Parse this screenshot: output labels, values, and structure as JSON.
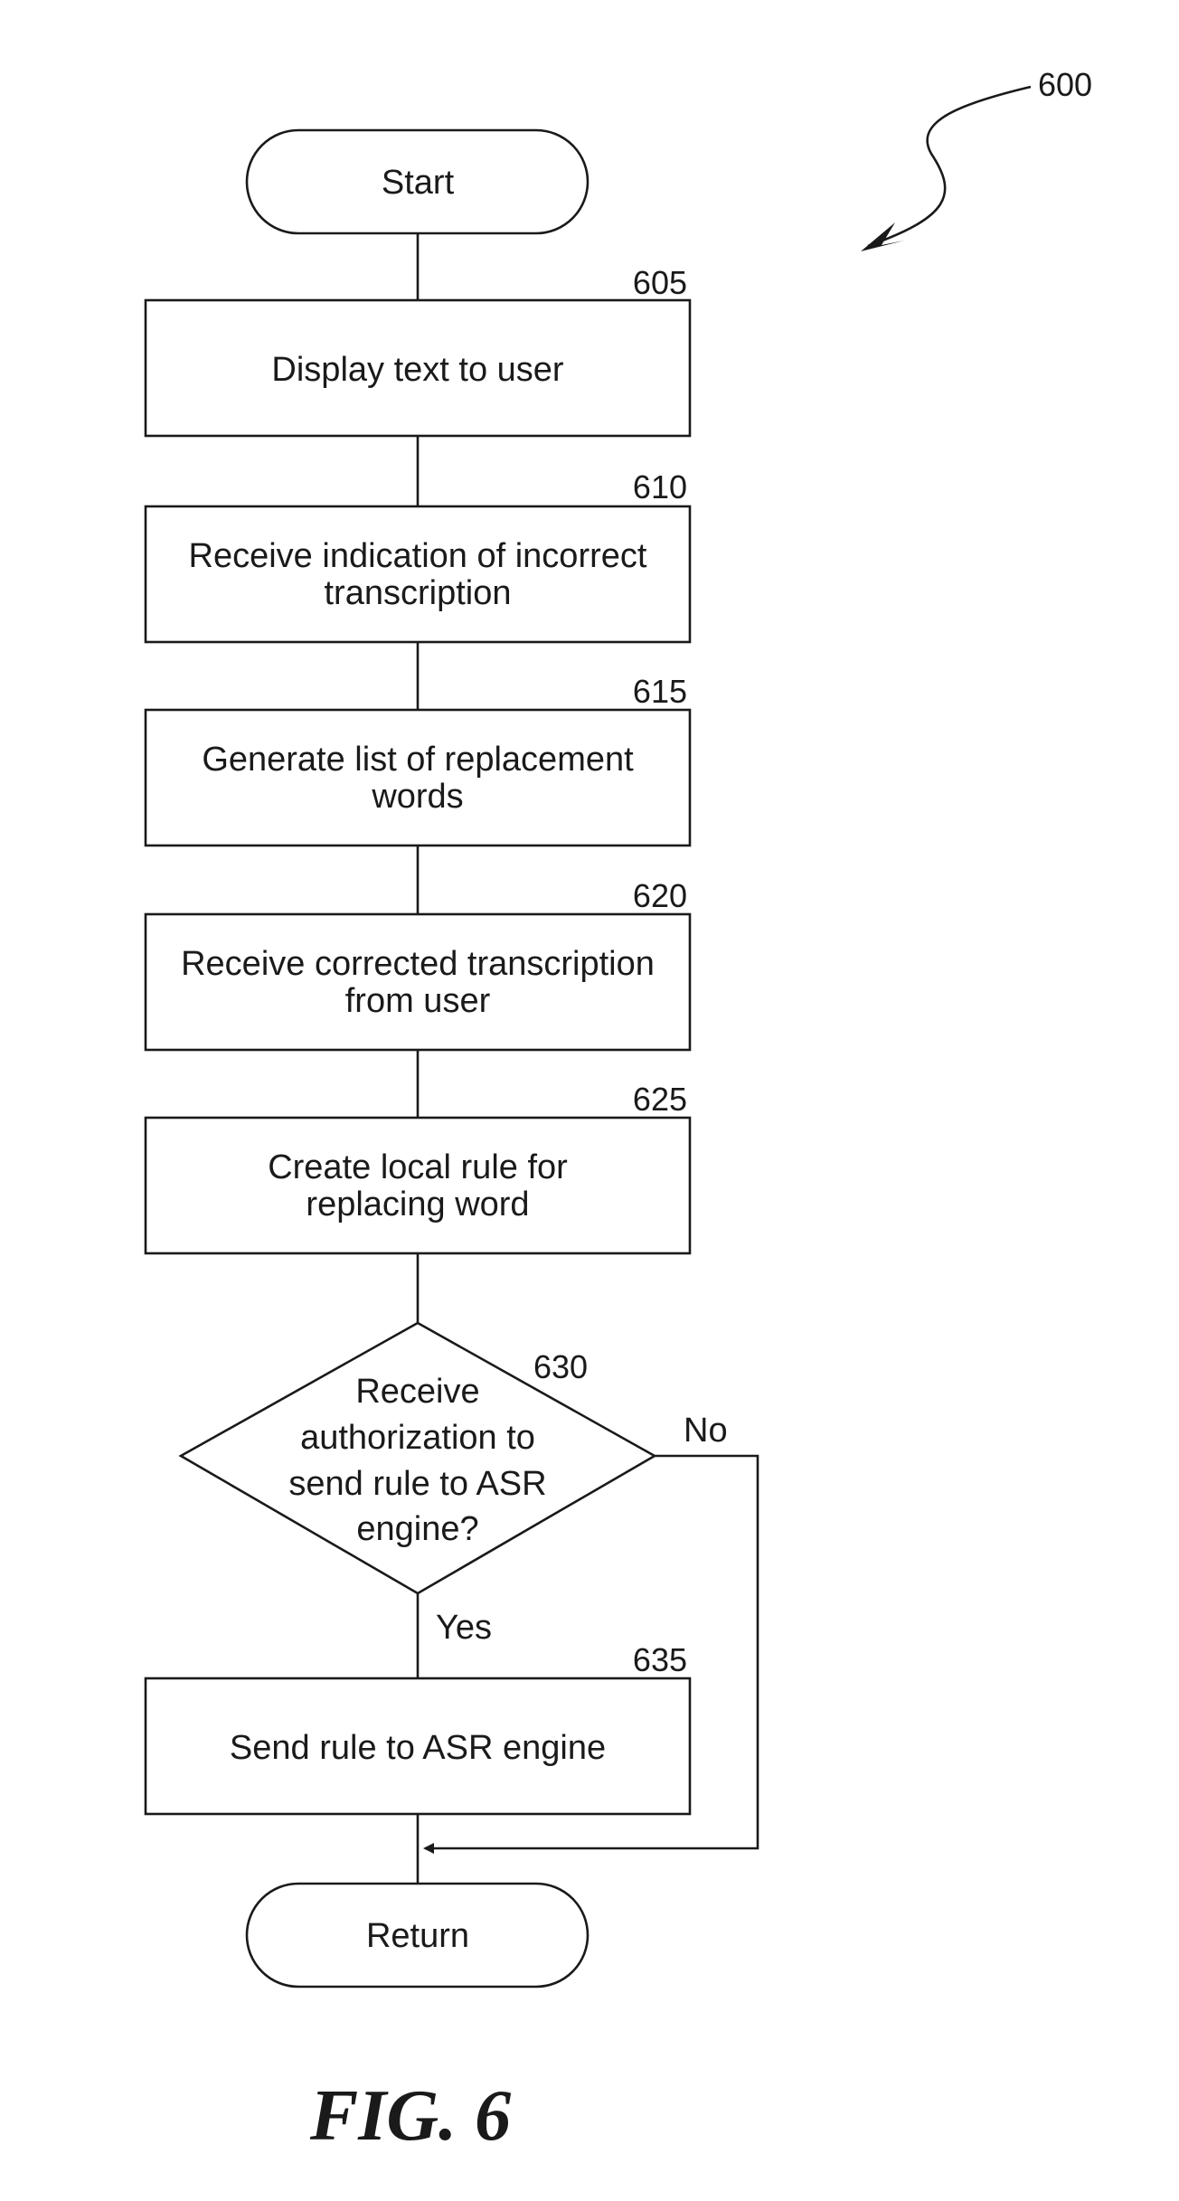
{
  "figure": {
    "ref": "600",
    "caption": "FIG. 6"
  },
  "nodes": {
    "start": {
      "lines": [
        "Start"
      ]
    },
    "step_605": {
      "ref": "605",
      "lines": [
        "Display text to user"
      ]
    },
    "step_610": {
      "ref": "610",
      "lines": [
        "Receive indication of incorrect",
        "transcription"
      ]
    },
    "step_615": {
      "ref": "615",
      "lines": [
        "Generate list of replacement",
        "words"
      ]
    },
    "step_620": {
      "ref": "620",
      "lines": [
        "Receive corrected transcription",
        "from user"
      ]
    },
    "step_625": {
      "ref": "625",
      "lines": [
        "Create local rule for",
        "replacing word"
      ]
    },
    "decision_630": {
      "ref": "630",
      "lines": [
        "Receive",
        "authorization to",
        "send rule to ASR",
        "engine?"
      ]
    },
    "step_635": {
      "ref": "635",
      "lines": [
        "Send rule to ASR engine"
      ]
    },
    "return": {
      "lines": [
        "Return"
      ]
    }
  },
  "edges": {
    "yes_label": "Yes",
    "no_label": "No"
  }
}
